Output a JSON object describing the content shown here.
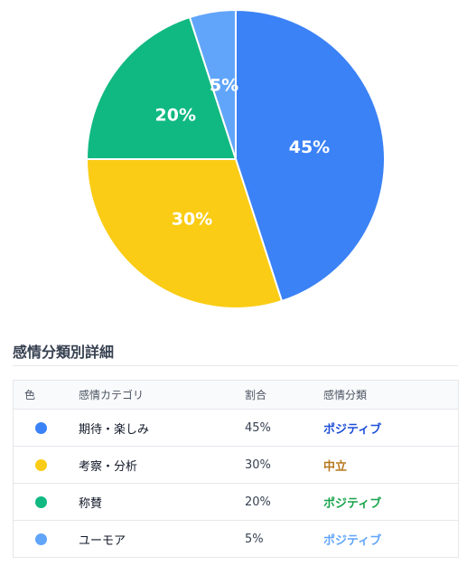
{
  "chart_data": {
    "type": "pie",
    "slices": [
      {
        "label": "期待・楽しみ",
        "value": 45,
        "color": "#3b82f6"
      },
      {
        "label": "考察・分析",
        "value": 30,
        "color": "#facc15"
      },
      {
        "label": "称賛",
        "value": 20,
        "color": "#10b981"
      },
      {
        "label": "ユーモア",
        "value": 5,
        "color": "#60a5fa"
      }
    ],
    "label_format": "{value}%",
    "start_angle_deg": 0,
    "direction": "clockwise"
  },
  "details": {
    "title": "感情分類別詳細",
    "headers": {
      "color": "色",
      "category": "感情カテゴリ",
      "ratio": "割合",
      "classification": "感情分類"
    },
    "rows": [
      {
        "color": "#3b82f6",
        "category": "期待・楽しみ",
        "ratio": "45%",
        "classification": "ポジティブ",
        "class_color": "#1d4ed8"
      },
      {
        "color": "#facc15",
        "category": "考察・分析",
        "ratio": "30%",
        "classification": "中立",
        "class_color": "#b7791f"
      },
      {
        "color": "#10b981",
        "category": "称賛",
        "ratio": "20%",
        "classification": "ポジティブ",
        "class_color": "#16a34a"
      },
      {
        "color": "#60a5fa",
        "category": "ユーモア",
        "ratio": "5%",
        "classification": "ポジティブ",
        "class_color": "#60a5fa"
      }
    ]
  }
}
